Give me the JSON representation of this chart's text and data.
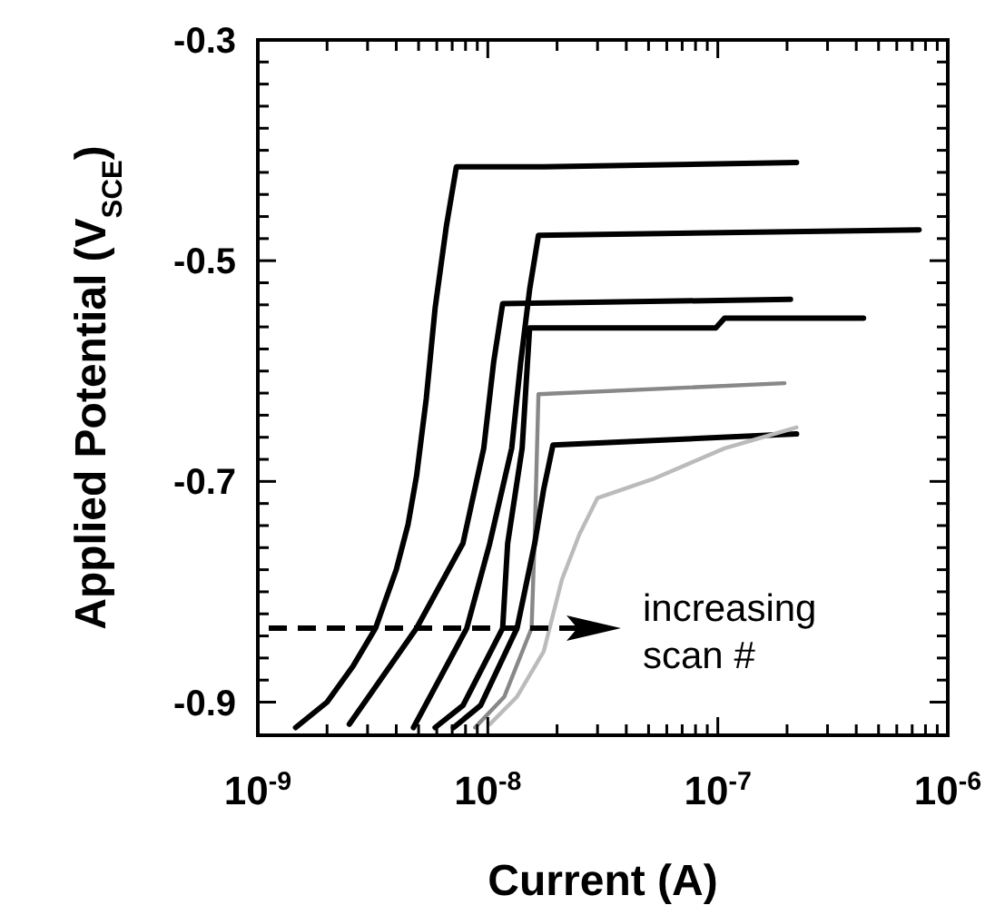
{
  "chart_data": {
    "type": "line",
    "xlabel": "Current (A)",
    "ylabel": "Applied Potential (V$_{SCE}$)",
    "log": "x",
    "grid": false,
    "line_style": "solid",
    "xlim": [
      1e-09,
      1e-06
    ],
    "xticks": [
      {
        "value": 1e-09,
        "label": "10$^{-9}$"
      },
      {
        "value": 2e-09,
        "label": null
      },
      {
        "value": 3e-09,
        "label": null
      },
      {
        "value": 4e-09,
        "label": null
      },
      {
        "value": 5e-09,
        "label": null
      },
      {
        "value": 6e-09,
        "label": null
      },
      {
        "value": 7e-09,
        "label": null
      },
      {
        "value": 8e-09,
        "label": null
      },
      {
        "value": 9e-09,
        "label": null
      },
      {
        "value": 1e-08,
        "label": "10$^{-8}$"
      },
      {
        "value": 2e-08,
        "label": null
      },
      {
        "value": 3e-08,
        "label": null
      },
      {
        "value": 4e-08,
        "label": null
      },
      {
        "value": 5e-08,
        "label": null
      },
      {
        "value": 6e-08,
        "label": null
      },
      {
        "value": 7e-08,
        "label": null
      },
      {
        "value": 8e-08,
        "label": null
      },
      {
        "value": 9e-08,
        "label": null
      },
      {
        "value": 1e-07,
        "label": "10$^{-7}$"
      },
      {
        "value": 2e-07,
        "label": null
      },
      {
        "value": 3e-07,
        "label": null
      },
      {
        "value": 4e-07,
        "label": null
      },
      {
        "value": 5e-07,
        "label": null
      },
      {
        "value": 6e-07,
        "label": null
      },
      {
        "value": 7e-07,
        "label": null
      },
      {
        "value": 8e-07,
        "label": null
      },
      {
        "value": 9e-07,
        "label": null
      },
      {
        "value": 1e-06,
        "label": "10$^{-6}$"
      }
    ],
    "ylim": [
      -0.93,
      -0.3
    ],
    "yticks": [
      -0.9,
      {
        "value": -0.88,
        "label": null
      },
      {
        "value": -0.86,
        "label": null
      },
      {
        "value": -0.84,
        "label": null
      },
      {
        "value": -0.82,
        "label": null
      },
      {
        "value": -0.8,
        "label": null
      },
      {
        "value": -0.78,
        "label": null
      },
      {
        "value": -0.76,
        "label": null
      },
      {
        "value": -0.74,
        "label": null
      },
      {
        "value": -0.72,
        "label": null
      },
      -0.7,
      {
        "value": -0.68,
        "label": null
      },
      {
        "value": -0.66,
        "label": null
      },
      {
        "value": -0.64,
        "label": null
      },
      {
        "value": -0.62,
        "label": null
      },
      {
        "value": -0.6,
        "label": null
      },
      {
        "value": -0.58,
        "label": null
      },
      {
        "value": -0.56,
        "label": null
      },
      {
        "value": -0.54,
        "label": null
      },
      {
        "value": -0.52,
        "label": null
      },
      -0.5,
      {
        "value": -0.48,
        "label": null
      },
      {
        "value": -0.46,
        "label": null
      },
      {
        "value": -0.44,
        "label": null
      },
      {
        "value": -0.42,
        "label": null
      },
      {
        "value": -0.4,
        "label": null
      },
      {
        "value": -0.38,
        "label": null
      },
      {
        "value": -0.36,
        "label": null
      },
      {
        "value": -0.34,
        "label": null
      },
      {
        "value": -0.32,
        "label": null
      },
      -0.3
    ],
    "annotations": [
      "increasing scan #"
    ],
    "series": [
      {
        "color": "#000000",
        "x": [
          1.46e-09,
          2e-09,
          2.6e-09,
          3.25e-09,
          4e-09,
          4.5e-09,
          4.9e-09,
          5.4e-09,
          5.9e-09,
          6.6e-09,
          7.3e-09,
          1.75e-08,
          2.2e-07
        ],
        "values": [
          -0.923,
          -0.9,
          -0.867,
          -0.833,
          -0.78,
          -0.739,
          -0.695,
          -0.625,
          -0.543,
          -0.469,
          -0.415,
          -0.415,
          -0.411
        ]
      },
      {
        "color": "#000000",
        "x": [
          2.5e-09,
          4.9e-09,
          7.8e-09,
          9.6e-09,
          1.06e-08,
          1.16e-08,
          2.07e-07
        ],
        "values": [
          -0.92,
          -0.833,
          -0.756,
          -0.67,
          -0.592,
          -0.539,
          -0.535
        ]
      },
      {
        "color": "#000000",
        "x": [
          4.75e-09,
          8.1e-09,
          1.02e-08,
          1.27e-08,
          1.39e-08,
          1.52e-08,
          1.66e-08,
          7.5e-07
        ],
        "values": [
          -0.923,
          -0.833,
          -0.756,
          -0.67,
          -0.592,
          -0.526,
          -0.477,
          -0.472
        ]
      },
      {
        "color": "#000000",
        "x": [
          5.9e-09,
          7.8e-09,
          1.16e-08,
          1.22e-08,
          1.41e-08,
          1.52e-08,
          9.8e-08,
          1.07e-07,
          4.3e-07
        ],
        "values": [
          -0.923,
          -0.903,
          -0.833,
          -0.756,
          -0.67,
          -0.561,
          -0.561,
          -0.552,
          -0.552
        ]
      },
      {
        "color": "#888888",
        "x": [
          8.8e-09,
          1.18e-08,
          1.55e-08,
          1.6e-08,
          1.66e-08,
          1.95e-07
        ],
        "values": [
          -0.923,
          -0.895,
          -0.833,
          -0.748,
          -0.621,
          -0.611
        ]
      },
      {
        "color": "#000000",
        "x": [
          7.1e-09,
          9.3e-09,
          1.34e-08,
          1.6e-08,
          1.75e-08,
          1.92e-08,
          2.2e-07
        ],
        "values": [
          -0.923,
          -0.903,
          -0.833,
          -0.756,
          -0.707,
          -0.667,
          -0.657
        ]
      },
      {
        "color": "#bbbbbb",
        "x": [
          1.02e-08,
          1.34e-08,
          1.75e-08,
          2.1e-08,
          2.5e-08,
          3e-08,
          5.2e-08,
          1.07e-07,
          2.2e-07
        ],
        "values": [
          -0.92,
          -0.895,
          -0.854,
          -0.789,
          -0.748,
          -0.715,
          -0.698,
          -0.67,
          -0.651
        ]
      }
    ]
  }
}
